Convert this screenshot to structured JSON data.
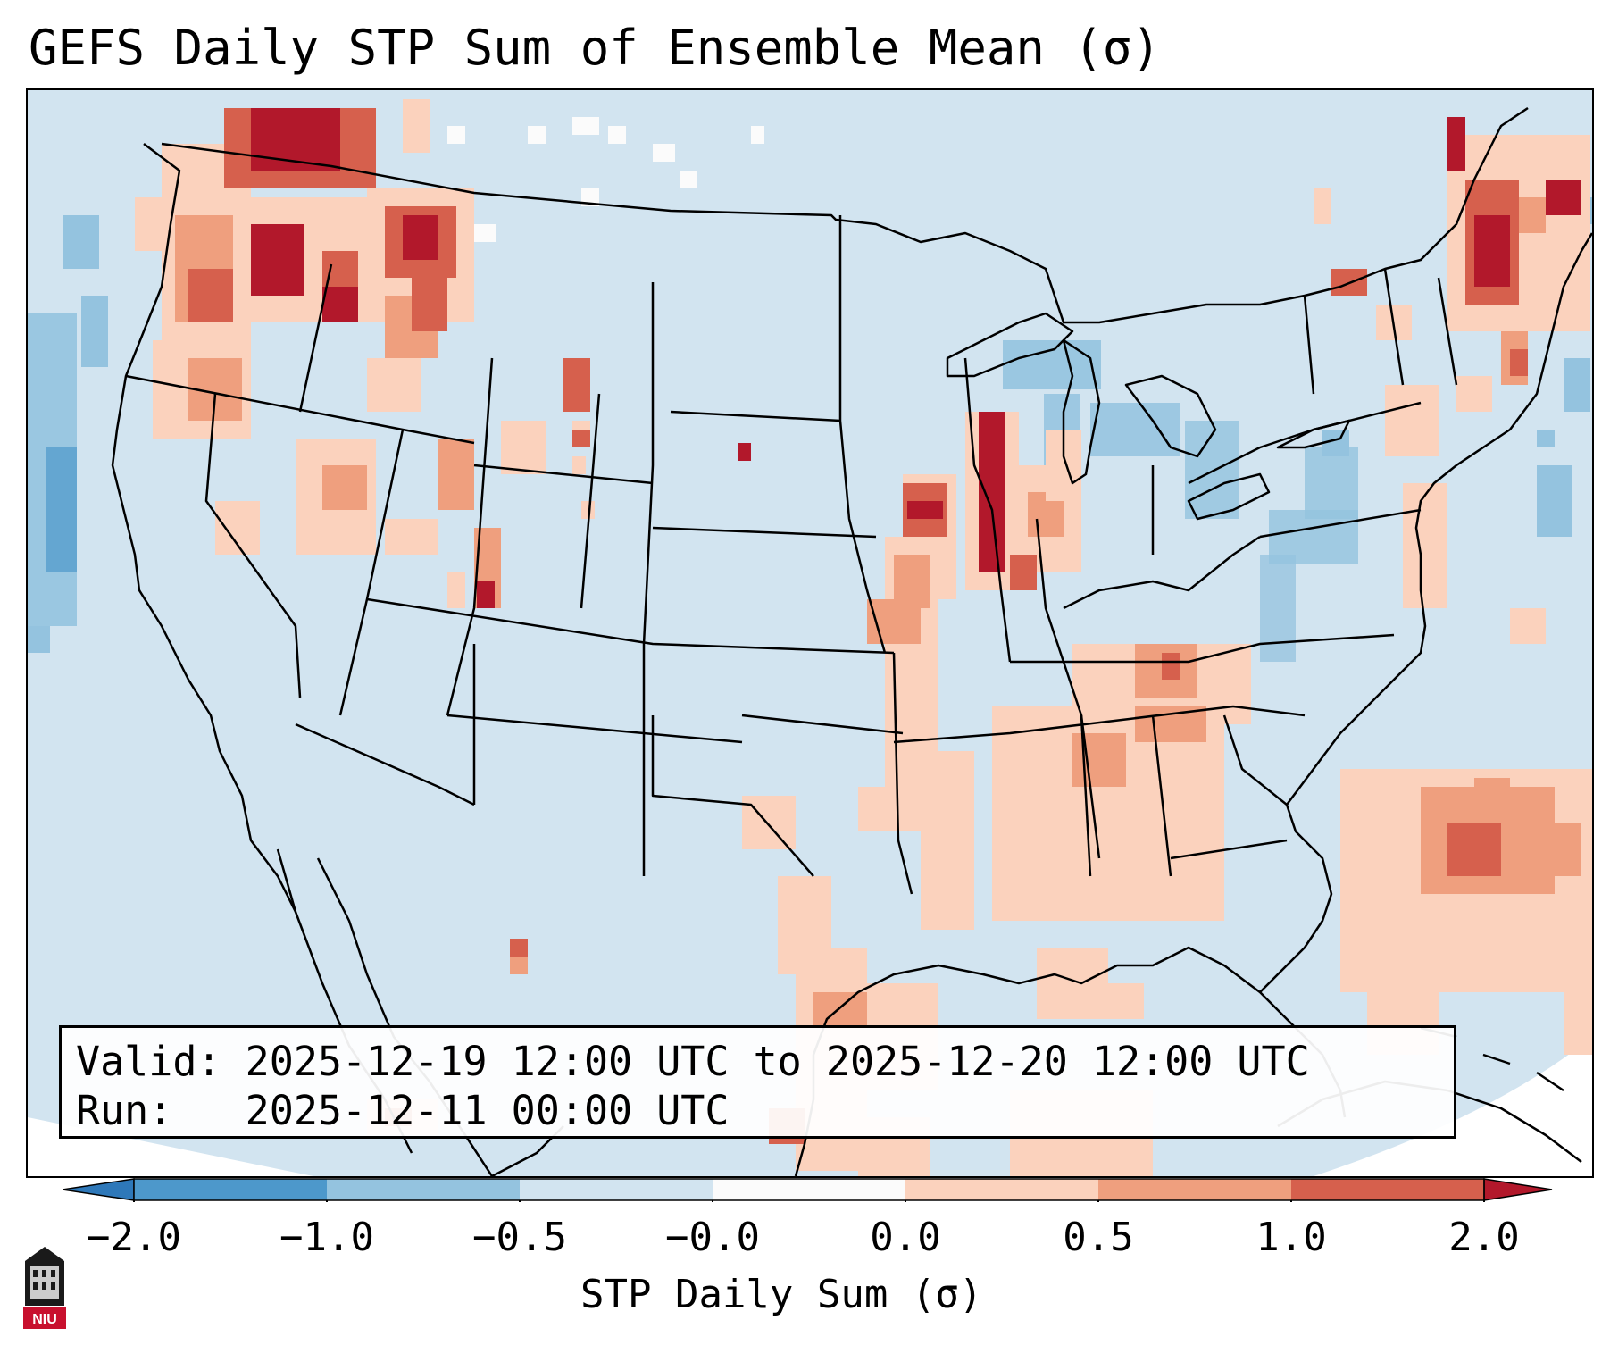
{
  "title": "GEFS Daily STP Sum of Ensemble Mean (σ)",
  "info_box": {
    "valid_line": "Valid: 2025-12-19 12:00 UTC to 2025-12-20 12:00 UTC",
    "run_line": "Run:   2025-12-11 00:00 UTC"
  },
  "colorbar": {
    "label": "STP Daily Sum (σ)",
    "ticks": [
      "−2.0",
      "−1.0",
      "−0.5",
      "−0.0",
      "0.0",
      "0.5",
      "1.0",
      "2.0"
    ],
    "colors": [
      "#2e78b9",
      "#4d98cb",
      "#94c3df",
      "#d2e4f0",
      "#fbfbfb",
      "#fbd2bd",
      "#ef9f7e",
      "#d6604d",
      "#b2182b"
    ]
  },
  "map": {
    "region": "CONUS",
    "colors": {
      "background": "#d2e4f0",
      "ocean_outside": "#ffffff",
      "borders": "#000000",
      "pos_light": "#fbd2bd",
      "pos_medium": "#ef9f7e",
      "pos_strong": "#d6604d",
      "pos_extreme": "#b2182b",
      "neg_light": "#94c3df",
      "neg_medium": "#4d98cb"
    }
  },
  "logo": {
    "text": "NIU",
    "icon": "university-building-icon"
  }
}
